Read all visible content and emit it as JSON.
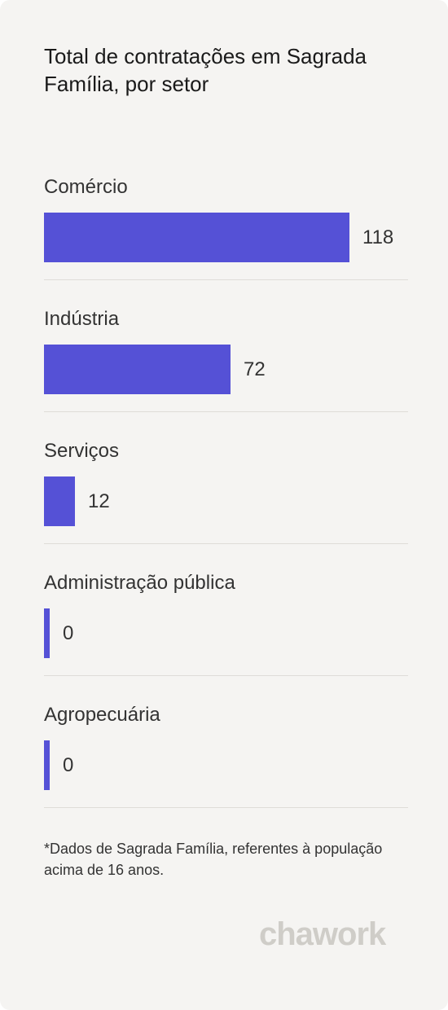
{
  "title": "Total de contratações em Sagrada Família, por setor",
  "chart_data": {
    "type": "bar",
    "orientation": "horizontal",
    "categories": [
      "Comércio",
      "Indústria",
      "Serviços",
      "Administração pública",
      "Agropecuária"
    ],
    "values": [
      118,
      72,
      12,
      0,
      0
    ],
    "value_labels": [
      "118",
      "72",
      "12",
      "0",
      "0"
    ],
    "title": "Total de contratações em Sagrada Família, por setor",
    "xlabel": "",
    "ylabel": "",
    "grid": false,
    "bar_color": "#5551d6"
  },
  "footnote": "*Dados de Sagrada Família, referentes à população acima de 16 anos.",
  "brand": "chawork",
  "colors": {
    "background": "#f5f4f2",
    "bar": "#5551d6",
    "text": "#333333",
    "divider": "#dedcd8",
    "logo": "#cfcdc8"
  }
}
